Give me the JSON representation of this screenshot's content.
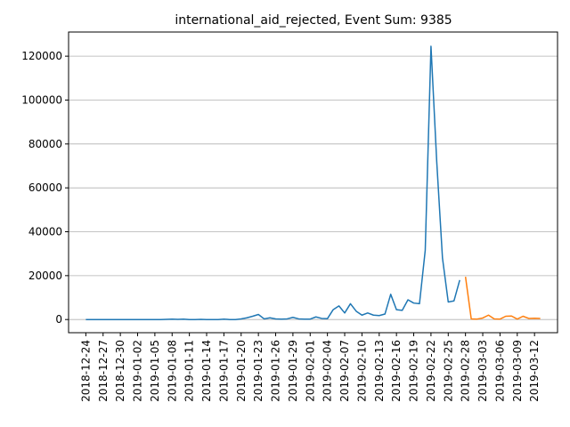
{
  "chart_data": {
    "type": "line",
    "title": "international_aid_rejected, Event Sum: 9385",
    "xlabel": "",
    "ylabel": "",
    "x_tick_labels": [
      "2018-12-24",
      "2018-12-27",
      "2018-12-30",
      "2019-01-02",
      "2019-01-05",
      "2019-01-08",
      "2019-01-11",
      "2019-01-14",
      "2019-01-17",
      "2019-01-20",
      "2019-01-23",
      "2019-01-26",
      "2019-01-29",
      "2019-02-01",
      "2019-02-04",
      "2019-02-07",
      "2019-02-10",
      "2019-02-13",
      "2019-02-16",
      "2019-02-19",
      "2019-02-22",
      "2019-02-25",
      "2019-02-28",
      "2019-03-03",
      "2019-03-06",
      "2019-03-09",
      "2019-03-12"
    ],
    "y_ticks": [
      0,
      20000,
      40000,
      60000,
      80000,
      100000,
      120000
    ],
    "y_tick_labels": [
      "0",
      "20000",
      "40000",
      "60000",
      "80000",
      "100000",
      "120000"
    ],
    "xlim": [
      "2018-12-21",
      "2019-03-16"
    ],
    "ylim": [
      -6000,
      131000
    ],
    "grid": "horizontal",
    "series": [
      {
        "color": "#1f77b4",
        "points": [
          [
            "2018-12-24",
            0
          ],
          [
            "2018-12-25",
            0
          ],
          [
            "2018-12-26",
            0
          ],
          [
            "2018-12-27",
            0
          ],
          [
            "2018-12-28",
            0
          ],
          [
            "2018-12-29",
            0
          ],
          [
            "2018-12-30",
            0
          ],
          [
            "2018-12-31",
            0
          ],
          [
            "2019-01-01",
            0
          ],
          [
            "2019-01-02",
            0
          ],
          [
            "2019-01-03",
            0
          ],
          [
            "2019-01-04",
            0
          ],
          [
            "2019-01-05",
            0
          ],
          [
            "2019-01-06",
            0
          ],
          [
            "2019-01-07",
            100
          ],
          [
            "2019-01-08",
            200
          ],
          [
            "2019-01-09",
            100
          ],
          [
            "2019-01-10",
            200
          ],
          [
            "2019-01-11",
            0
          ],
          [
            "2019-01-12",
            0
          ],
          [
            "2019-01-13",
            100
          ],
          [
            "2019-01-14",
            0
          ],
          [
            "2019-01-15",
            0
          ],
          [
            "2019-01-16",
            0
          ],
          [
            "2019-01-17",
            200
          ],
          [
            "2019-01-18",
            0
          ],
          [
            "2019-01-19",
            0
          ],
          [
            "2019-01-20",
            300
          ],
          [
            "2019-01-21",
            800
          ],
          [
            "2019-01-22",
            1500
          ],
          [
            "2019-01-23",
            2300
          ],
          [
            "2019-01-24",
            300
          ],
          [
            "2019-01-25",
            800
          ],
          [
            "2019-01-26",
            300
          ],
          [
            "2019-01-27",
            200
          ],
          [
            "2019-01-28",
            300
          ],
          [
            "2019-01-29",
            1000
          ],
          [
            "2019-01-30",
            300
          ],
          [
            "2019-01-31",
            200
          ],
          [
            "2019-02-01",
            200
          ],
          [
            "2019-02-02",
            1200
          ],
          [
            "2019-02-03",
            500
          ],
          [
            "2019-02-04",
            400
          ],
          [
            "2019-02-05",
            4500
          ],
          [
            "2019-02-06",
            6200
          ],
          [
            "2019-02-07",
            3000
          ],
          [
            "2019-02-08",
            7200
          ],
          [
            "2019-02-09",
            3800
          ],
          [
            "2019-02-10",
            2000
          ],
          [
            "2019-02-11",
            3000
          ],
          [
            "2019-02-12",
            2000
          ],
          [
            "2019-02-13",
            1800
          ],
          [
            "2019-02-14",
            2500
          ],
          [
            "2019-02-15",
            11500
          ],
          [
            "2019-02-16",
            4500
          ],
          [
            "2019-02-17",
            4200
          ],
          [
            "2019-02-18",
            9000
          ],
          [
            "2019-02-19",
            7500
          ],
          [
            "2019-02-20",
            7200
          ],
          [
            "2019-02-21",
            31500
          ],
          [
            "2019-02-22",
            124500
          ],
          [
            "2019-02-23",
            72000
          ],
          [
            "2019-02-24",
            28000
          ],
          [
            "2019-02-25",
            8000
          ],
          [
            "2019-02-26",
            8500
          ],
          [
            "2019-02-27",
            18000
          ]
        ]
      },
      {
        "color": "#ff7f0e",
        "points": [
          [
            "2019-02-28",
            19500
          ],
          [
            "2019-03-01",
            300
          ],
          [
            "2019-03-02",
            200
          ],
          [
            "2019-03-03",
            700
          ],
          [
            "2019-03-04",
            2000
          ],
          [
            "2019-03-05",
            300
          ],
          [
            "2019-03-06",
            200
          ],
          [
            "2019-03-07",
            1500
          ],
          [
            "2019-03-08",
            1600
          ],
          [
            "2019-03-09",
            200
          ],
          [
            "2019-03-10",
            1500
          ],
          [
            "2019-03-11",
            500
          ],
          [
            "2019-03-12",
            600
          ],
          [
            "2019-03-13",
            500
          ]
        ]
      }
    ]
  }
}
